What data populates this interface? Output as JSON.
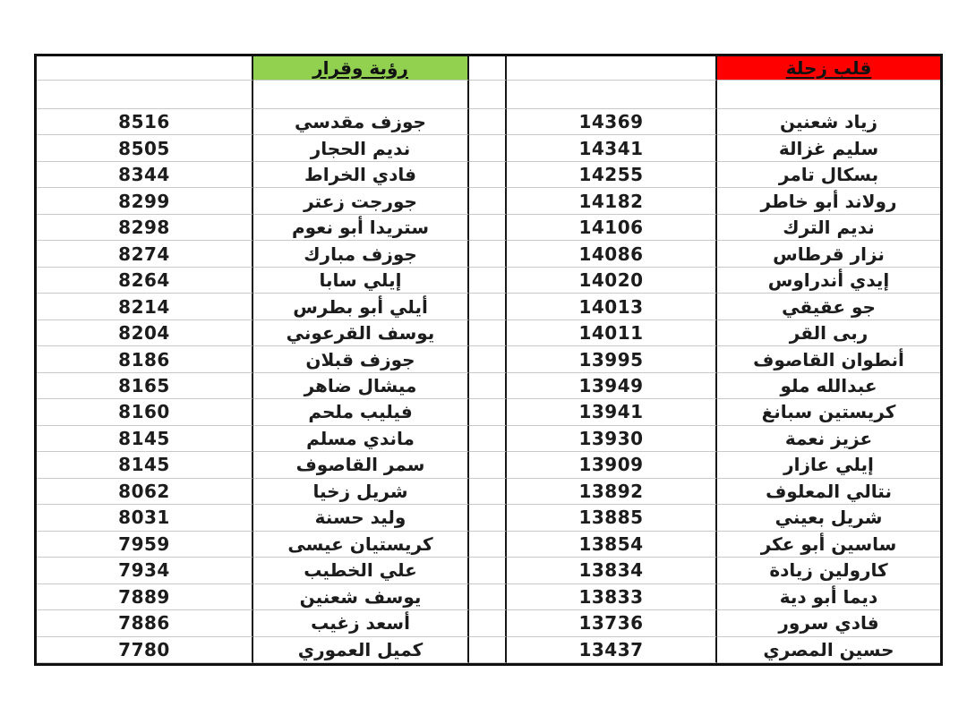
{
  "table": {
    "left_list": {
      "title": "رؤية وقرار",
      "accent_color": "#92d050",
      "rows": [
        {
          "name": "جوزف مقدسي",
          "votes": "8516"
        },
        {
          "name": "نديم الحجار",
          "votes": "8505"
        },
        {
          "name": "فادي الخراط",
          "votes": "8344"
        },
        {
          "name": "جورجت زعتر",
          "votes": "8299"
        },
        {
          "name": "ستريدا أبو نعوم",
          "votes": "8298"
        },
        {
          "name": "جوزف مبارك",
          "votes": "8274"
        },
        {
          "name": "إيلي سابا",
          "votes": "8264"
        },
        {
          "name": "أيلي أبو بطرس",
          "votes": "8214"
        },
        {
          "name": "يوسف القرعوني",
          "votes": "8204"
        },
        {
          "name": "جوزف قبلان",
          "votes": "8186"
        },
        {
          "name": "ميشال ضاهر",
          "votes": "8165"
        },
        {
          "name": "فيليب ملحم",
          "votes": "8160"
        },
        {
          "name": "ماندي مسلم",
          "votes": "8145"
        },
        {
          "name": "سمر القاصوف",
          "votes": "8145"
        },
        {
          "name": "شريل زخيا",
          "votes": "8062"
        },
        {
          "name": "وليد حسنة",
          "votes": "8031"
        },
        {
          "name": "كريستيان عيسى",
          "votes": "7959"
        },
        {
          "name": "علي الخطيب",
          "votes": "7934"
        },
        {
          "name": "يوسف شعنين",
          "votes": "7889"
        },
        {
          "name": "أسعد زغيب",
          "votes": "7886"
        },
        {
          "name": "كميل العموري",
          "votes": "7780"
        }
      ]
    },
    "right_list": {
      "title": "قلب زحلة",
      "accent_color": "#fe0000",
      "rows": [
        {
          "name": "زياد شعنين",
          "votes": "14369"
        },
        {
          "name": "سليم غزالة",
          "votes": "14341"
        },
        {
          "name": "بسكال تامر",
          "votes": "14255"
        },
        {
          "name": "رولاند أبو خاطر",
          "votes": "14182"
        },
        {
          "name": "نديم الترك",
          "votes": "14106"
        },
        {
          "name": "نزار قرطاس",
          "votes": "14086"
        },
        {
          "name": "إيدي أندراوس",
          "votes": "14020"
        },
        {
          "name": "جو عقيقي",
          "votes": "14013"
        },
        {
          "name": "ربى القر",
          "votes": "14011"
        },
        {
          "name": "أنطوان القاصوف",
          "votes": "13995"
        },
        {
          "name": "عبدالله ملو",
          "votes": "13949"
        },
        {
          "name": "كريستين سبانغ",
          "votes": "13941"
        },
        {
          "name": "عزيز نعمة",
          "votes": "13930"
        },
        {
          "name": "إيلي عازار",
          "votes": "13909"
        },
        {
          "name": "نتالي المعلوف",
          "votes": "13892"
        },
        {
          "name": "شريل بعيني",
          "votes": "13885"
        },
        {
          "name": "ساسين أبو عكر",
          "votes": "13854"
        },
        {
          "name": "كارولين زيادة",
          "votes": "13834"
        },
        {
          "name": "ديما أبو دية",
          "votes": "13833"
        },
        {
          "name": "فادي سرور",
          "votes": "13736"
        },
        {
          "name": "حسين المصري",
          "votes": "13437"
        }
      ]
    }
  }
}
